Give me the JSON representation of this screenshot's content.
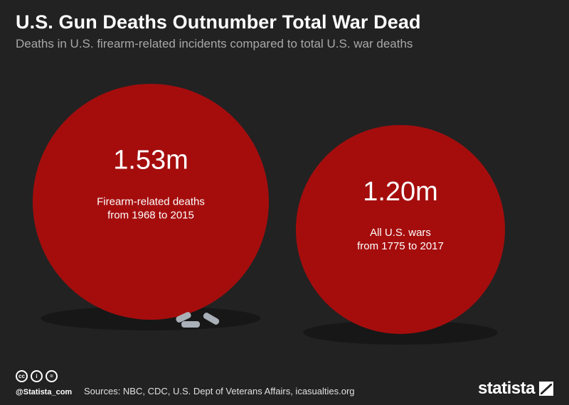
{
  "header": {
    "title": "U.S. Gun Deaths Outnumber Total War Dead",
    "subtitle": "Deaths in U.S. firearm-related incidents compared to total U.S. war deaths"
  },
  "chart_data": {
    "type": "bubble",
    "items": [
      {
        "value": 1.53,
        "value_label": "1.53m",
        "label_line1": "Firearm-related deaths",
        "label_line2": "from 1968 to 2015"
      },
      {
        "value": 1.2,
        "value_label": "1.20m",
        "label_line1": "All U.S. wars",
        "label_line2": "from 1775 to 2017"
      }
    ]
  },
  "colors": {
    "background": "#222222",
    "bubble": "#a50d0d",
    "shadow": "#171717",
    "bullet": "#a9b0b8"
  },
  "footer": {
    "handle": "@Statista_com",
    "sources": "Sources: NBC, CDC, U.S. Dept of Veterans Affairs, icasualties.org",
    "logo": "statista",
    "license_icons": [
      "cc-icon",
      "attribution-icon",
      "no-derivatives-icon"
    ]
  }
}
